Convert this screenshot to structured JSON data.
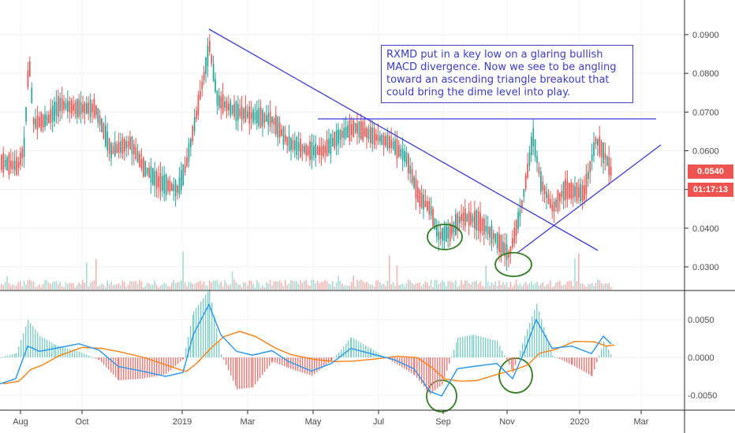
{
  "annotation": "RXMD put in a key low on a glaring bullish MACD divergence. Now we see to be angling toward an ascending triangle breakout that could bring the dime level into play.",
  "last_price": "0.0540",
  "countdown": "01:17:13",
  "colors": {
    "up": "#26a69a",
    "down": "#ef5350",
    "trendline": "#3a3adf",
    "macd": "#2196f3",
    "signal": "#ff7f0e",
    "circle": "#2e7d1e"
  },
  "chart_data": [
    {
      "type": "candlestick",
      "title": "",
      "y_ticks": [
        "0.0300",
        "0.0400",
        "0.0500",
        "0.0600",
        "0.0700",
        "0.0800",
        "0.0900"
      ],
      "ylim": [
        0.025,
        0.098
      ],
      "x_ticks": [
        "Aug",
        "Oct",
        "2019",
        "Mar",
        "May",
        "Jul",
        "Sep",
        "Nov",
        "2020",
        "Mar"
      ],
      "series_close_approx": [
        {
          "x": "Aug 2018",
          "y": 0.057
        },
        {
          "x": "Aug 2018",
          "y": 0.085
        },
        {
          "x": "Sep 2018",
          "y": 0.068
        },
        {
          "x": "Oct 2018",
          "y": 0.072
        },
        {
          "x": "Nov 2018",
          "y": 0.062
        },
        {
          "x": "Dec 2018",
          "y": 0.05
        },
        {
          "x": "Jan 2019",
          "y": 0.058
        },
        {
          "x": "Feb 2019",
          "y": 0.088
        },
        {
          "x": "Mar 2019",
          "y": 0.07
        },
        {
          "x": "Apr 2019",
          "y": 0.066
        },
        {
          "x": "May 2019",
          "y": 0.06
        },
        {
          "x": "Jun 2019",
          "y": 0.064
        },
        {
          "x": "Jul 2019",
          "y": 0.063
        },
        {
          "x": "Aug 2019",
          "y": 0.05
        },
        {
          "x": "Sep 2019",
          "y": 0.038
        },
        {
          "x": "Oct 2019",
          "y": 0.042
        },
        {
          "x": "Nov 2019",
          "y": 0.033
        },
        {
          "x": "Nov 2019",
          "y": 0.065
        },
        {
          "x": "Dec 2019",
          "y": 0.05
        },
        {
          "x": "Jan 2020",
          "y": 0.062
        },
        {
          "x": "Jan 2020",
          "y": 0.054
        }
      ],
      "lines": [
        {
          "name": "",
          "from": {
            "x": "Jan 2019",
            "y": 0.091
          },
          "to": {
            "x": "Dec 2019",
            "y": 0.035
          }
        },
        {
          "name": "",
          "from": {
            "x": "May 2019",
            "y": 0.0685
          },
          "to": {
            "x": "Feb 2020",
            "y": 0.0685
          }
        },
        {
          "name": "",
          "from": {
            "x": "Nov 2019",
            "y": 0.034
          },
          "to": {
            "x": "Mar 2020",
            "y": 0.062
          }
        }
      ]
    },
    {
      "type": "line",
      "title": "",
      "y_ticks": [
        "-0.0050",
        "0.0000",
        "0.0050"
      ],
      "ylim": [
        -0.0065,
        0.0085
      ],
      "series": [
        {
          "name": "",
          "values_approx": [
            -0.003,
            0.0015,
            0.001,
            0.0015,
            -0.0005,
            -0.002,
            0.007,
            0.002,
            0.002,
            -0.001,
            0.001,
            0.001,
            -0.001,
            -0.005,
            -0.001,
            -0.002,
            0.005,
            0.002,
            0.0025
          ]
        },
        {
          "name": "",
          "values_approx": [
            -0.0025,
            0.001,
            0.001,
            0.0015,
            -0.0003,
            -0.0018,
            0.0055,
            0.002,
            0.0015,
            -0.0008,
            0.0008,
            0.0008,
            -0.0008,
            -0.0045,
            -0.0012,
            -0.0018,
            0.004,
            0.0018,
            0.002
          ]
        }
      ]
    }
  ]
}
